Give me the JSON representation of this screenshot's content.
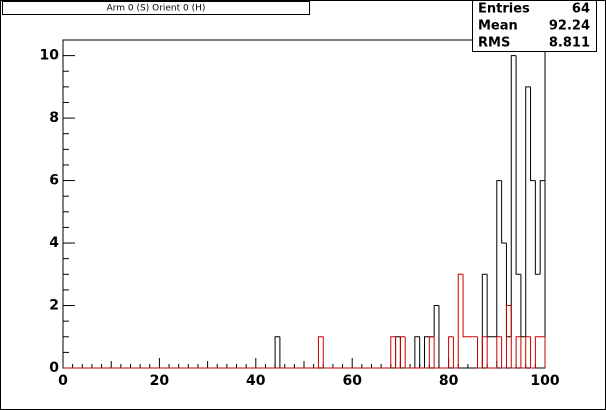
{
  "chart_data": {
    "type": "histogram",
    "title": "Arm 0 (S) Orient 0 (H)",
    "bins": [
      0,
      1,
      2,
      3,
      4,
      5,
      6,
      7,
      8,
      9,
      10,
      11,
      12,
      13,
      14,
      15,
      16,
      17,
      18,
      19,
      20,
      21,
      22,
      23,
      24,
      25,
      26,
      27,
      28,
      29,
      30,
      31,
      32,
      33,
      34,
      35,
      36,
      37,
      38,
      39,
      40,
      41,
      42,
      43,
      44,
      45,
      46,
      47,
      48,
      49,
      50,
      51,
      52,
      53,
      54,
      55,
      56,
      57,
      58,
      59,
      60,
      61,
      62,
      63,
      64,
      65,
      66,
      67,
      68,
      69,
      70,
      71,
      72,
      73,
      74,
      75,
      76,
      77,
      78,
      79,
      80,
      81,
      82,
      83,
      84,
      85,
      86,
      87,
      88,
      89,
      90,
      91,
      92,
      93,
      94,
      95,
      96,
      97,
      98,
      99,
      100
    ],
    "series": [
      {
        "color": "#000000",
        "values": [
          0,
          0,
          0,
          0,
          0,
          0,
          0,
          0,
          0,
          0,
          0,
          0,
          0,
          0,
          0,
          0,
          0,
          0,
          0,
          0,
          0,
          0,
          0,
          0,
          0,
          0,
          0,
          0,
          0,
          0,
          0,
          0,
          0,
          0,
          0,
          0,
          0,
          0,
          0,
          0,
          0,
          0,
          0,
          0,
          1,
          0,
          0,
          0,
          0,
          0,
          0,
          0,
          0,
          0,
          0,
          0,
          0,
          0,
          0,
          0,
          0,
          0,
          0,
          0,
          0,
          0,
          0,
          0,
          0,
          1,
          0,
          0,
          0,
          1,
          0,
          1,
          1,
          2,
          0,
          0,
          0,
          0,
          0,
          0,
          0,
          0,
          0,
          3,
          1,
          1,
          6,
          4,
          1,
          10,
          3,
          1,
          9,
          6,
          3,
          6
        ]
      },
      {
        "color": "#cc0000",
        "values": [
          0,
          0,
          0,
          0,
          0,
          0,
          0,
          0,
          0,
          0,
          0,
          0,
          0,
          0,
          0,
          0,
          0,
          0,
          0,
          0,
          0,
          0,
          0,
          0,
          0,
          0,
          0,
          0,
          0,
          0,
          0,
          0,
          0,
          0,
          0,
          0,
          0,
          0,
          0,
          0,
          0,
          0,
          0,
          0,
          0,
          0,
          0,
          0,
          0,
          0,
          0,
          0,
          0,
          1,
          0,
          0,
          0,
          0,
          0,
          0,
          0,
          0,
          0,
          0,
          0,
          0,
          0,
          0,
          1,
          0,
          1,
          0,
          0,
          0,
          0,
          0,
          1,
          0,
          0,
          0,
          1,
          0,
          3,
          1,
          1,
          1,
          0,
          1,
          0,
          0,
          1,
          0,
          2,
          0,
          1,
          0,
          1,
          0,
          1,
          1
        ]
      }
    ],
    "xlim": [
      0,
      100
    ],
    "xticks": [
      0,
      20,
      40,
      60,
      80,
      100
    ],
    "ylim": [
      0,
      10.5
    ],
    "yticks": [
      0,
      2,
      4,
      6,
      8,
      10
    ],
    "stats": [
      [
        "Entries",
        "64"
      ],
      [
        "Mean",
        "92.24"
      ],
      [
        "RMS",
        "8.811"
      ]
    ]
  }
}
